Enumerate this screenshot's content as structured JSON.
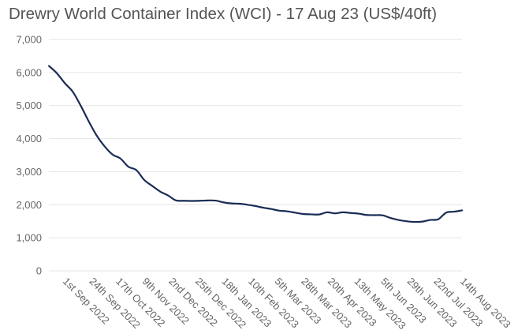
{
  "chart_data": {
    "type": "line",
    "title": "Drewry World Container Index (WCI) - 17 Aug 23 (US$/40ft)",
    "xlabel": "",
    "ylabel": "",
    "ylim": [
      0,
      7000
    ],
    "yticks": [
      0,
      1000,
      2000,
      3000,
      4000,
      5000,
      6000,
      7000
    ],
    "ytick_labels": [
      "0",
      "1,000",
      "2,000",
      "3,000",
      "4,000",
      "5,000",
      "6,000",
      "7,000"
    ],
    "xtick_labels": [
      "1st Sep 2022",
      "24th Sep 2022",
      "17th Oct 2022",
      "9th Nov 2022",
      "2nd Dec 2022",
      "25th Dec 2022",
      "18th Jan 2023",
      "10th Feb 2023",
      "5th Mar 2023",
      "28th Mar 2023",
      "20th Apr 2023",
      "13th May 2023",
      "5th Jun 2023",
      "29th Jun 2023",
      "22nd Jul 2023",
      "14th Aug 2023"
    ],
    "grid": true,
    "legend": "none",
    "series": [
      {
        "name": "WCI",
        "color": "#1a2c55",
        "values": [
          6200,
          5980,
          5680,
          5420,
          5000,
          4530,
          4100,
          3770,
          3520,
          3400,
          3150,
          3050,
          2750,
          2570,
          2400,
          2280,
          2130,
          2120,
          2115,
          2120,
          2130,
          2125,
          2070,
          2040,
          2030,
          2000,
          1960,
          1910,
          1870,
          1820,
          1800,
          1760,
          1720,
          1710,
          1705,
          1770,
          1740,
          1770,
          1750,
          1730,
          1690,
          1685,
          1680,
          1600,
          1540,
          1500,
          1480,
          1490,
          1540,
          1560,
          1760,
          1790,
          1830
        ]
      }
    ]
  }
}
